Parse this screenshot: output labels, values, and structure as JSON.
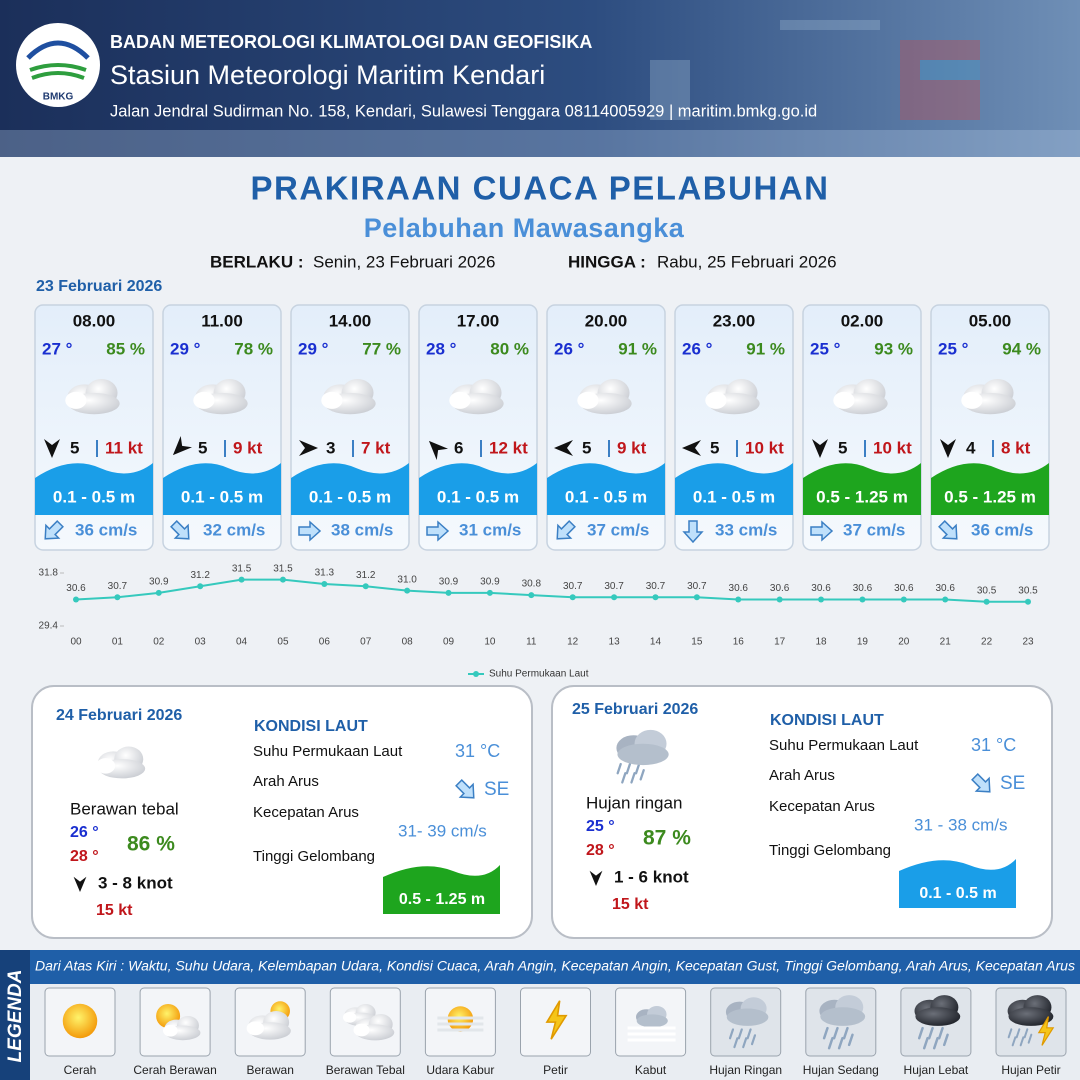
{
  "header": {
    "agency": "BADAN METEOROLOGI KLIMATOLOGI DAN GEOFISIKA",
    "station": "Stasiun Meteorologi Maritim Kendari",
    "address": "Jalan Jendral Sudirman No. 158, Kendari, Sulawesi Tenggara  08114005929 | maritim.bmkg.go.id",
    "logo": "BMKG"
  },
  "title": "PRAKIRAAN CUACA PELABUHAN",
  "subtitle": "Pelabuhan Mawasangka",
  "validity": {
    "from_label": "BERLAKU :",
    "from": "Senin, 23 Februari 2026",
    "to_label": "HINGGA :",
    "to": "Rabu, 25 Februari 2026"
  },
  "day1": {
    "date": "23 Februari 2026",
    "slots": [
      {
        "time": "08.00",
        "temp": "27 °",
        "humidity": "85 %",
        "wind": "5",
        "gust": "11 kt",
        "wave": "0.1 - 0.5 m",
        "wave_color": "#1a9ee8",
        "current": "36 cm/s"
      },
      {
        "time": "11.00",
        "temp": "29 °",
        "humidity": "78 %",
        "wind": "5",
        "gust": "9 kt",
        "wave": "0.1 - 0.5 m",
        "wave_color": "#1a9ee8",
        "current": "32 cm/s"
      },
      {
        "time": "14.00",
        "temp": "29 °",
        "humidity": "77 %",
        "wind": "3",
        "gust": "7 kt",
        "wave": "0.1 - 0.5 m",
        "wave_color": "#1a9ee8",
        "current": "38 cm/s"
      },
      {
        "time": "17.00",
        "temp": "28 °",
        "humidity": "80 %",
        "wind": "6",
        "gust": "12 kt",
        "wave": "0.1 - 0.5 m",
        "wave_color": "#1a9ee8",
        "current": "31 cm/s"
      },
      {
        "time": "20.00",
        "temp": "26 °",
        "humidity": "91 %",
        "wind": "5",
        "gust": "9 kt",
        "wave": "0.1 - 0.5 m",
        "wave_color": "#1a9ee8",
        "current": "37 cm/s"
      },
      {
        "time": "23.00",
        "temp": "26 °",
        "humidity": "91 %",
        "wind": "5",
        "gust": "10 kt",
        "wave": "0.1 - 0.5 m",
        "wave_color": "#1a9ee8",
        "current": "33 cm/s"
      },
      {
        "time": "02.00",
        "temp": "25 °",
        "humidity": "93 %",
        "wind": "5",
        "gust": "10 kt",
        "wave": "0.5 - 1.25 m",
        "wave_color": "#1ea51e",
        "current": "37 cm/s"
      },
      {
        "time": "05.00",
        "temp": "25 °",
        "humidity": "94 %",
        "wind": "4",
        "gust": "8 kt",
        "wave": "0.5 - 1.25 m",
        "wave_color": "#1ea51e",
        "current": "36 cm/s"
      }
    ]
  },
  "chart_data": {
    "type": "line",
    "x": [
      "00",
      "01",
      "02",
      "03",
      "04",
      "05",
      "06",
      "07",
      "08",
      "09",
      "10",
      "11",
      "12",
      "13",
      "14",
      "15",
      "16",
      "17",
      "18",
      "19",
      "20",
      "21",
      "22",
      "23"
    ],
    "series": [
      {
        "name": "Suhu Permukaan Laut",
        "color": "#35c9bd",
        "values": [
          30.6,
          30.7,
          30.9,
          31.2,
          31.5,
          31.5,
          31.3,
          31.2,
          31.0,
          30.9,
          30.9,
          30.8,
          30.7,
          30.7,
          30.7,
          30.7,
          30.6,
          30.6,
          30.6,
          30.6,
          30.6,
          30.6,
          30.5,
          30.5
        ],
        "value_labels": [
          "30.6",
          "30.7",
          "30.9",
          "31.2",
          "31.5",
          "31.5",
          "31.3",
          "31.2",
          "31.0",
          "30.9",
          "30.9",
          "30.8",
          "30.7",
          "30.7",
          "30.7",
          "30.7",
          "30.6",
          "30.6",
          "30.6",
          "30.6",
          "30.6",
          "30.6",
          "30.5",
          "30.5"
        ]
      }
    ],
    "ylim": [
      29.4,
      31.8
    ],
    "yticks": [
      29.4,
      31.8
    ]
  },
  "day2": {
    "date": "24 Februari 2026",
    "weather": "Berawan tebal",
    "temp_min": "26 °",
    "temp_max": "28 °",
    "humidity": "86 %",
    "wind": "3  - 8 knot",
    "gust": "15 kt",
    "sea_title": "KONDISI LAUT",
    "sst_label": "Suhu Permukaan Laut",
    "sst": "31 °C",
    "dir_label": "Arah Arus",
    "dir": "SE",
    "speed_label": "Kecepatan Arus",
    "speed": "31- 39 cm/s",
    "wave_label": "Tinggi Gelombang",
    "wave": "0.5 - 1.25 m",
    "wave_color": "#1ea51e"
  },
  "day3": {
    "date": "25 Februari 2026",
    "weather": "Hujan ringan",
    "temp_min": "25 °",
    "temp_max": "28 °",
    "humidity": "87 %",
    "wind": "1  - 6 knot",
    "gust": "15 kt",
    "sea_title": "KONDISI LAUT",
    "sst_label": "Suhu Permukaan Laut",
    "sst": "31 °C",
    "dir_label": "Arah Arus",
    "dir": "SE",
    "speed_label": "Kecepatan Arus",
    "speed": "31 - 38 cm/s",
    "wave_label": "Tinggi Gelombang",
    "wave": "0.1 - 0.5 m",
    "wave_color": "#1a9ee8"
  },
  "legend": {
    "title": "LEGENDA",
    "description": "Dari Atas Kiri : Waktu, Suhu Udara, Kelembapan Udara, Kondisi Cuaca, Arah Angin, Kecepatan Angin, Kecepatan Gust, Tinggi Gelombang, Arah Arus, Kecepatan Arus",
    "items": [
      "Cerah",
      "Cerah Berawan",
      "Berawan",
      "Berawan Tebal",
      "Udara Kabur",
      "Petir",
      "Kabut",
      "Hujan Ringan",
      "Hujan Sedang",
      "Hujan Lebat",
      "Hujan Petir"
    ]
  }
}
